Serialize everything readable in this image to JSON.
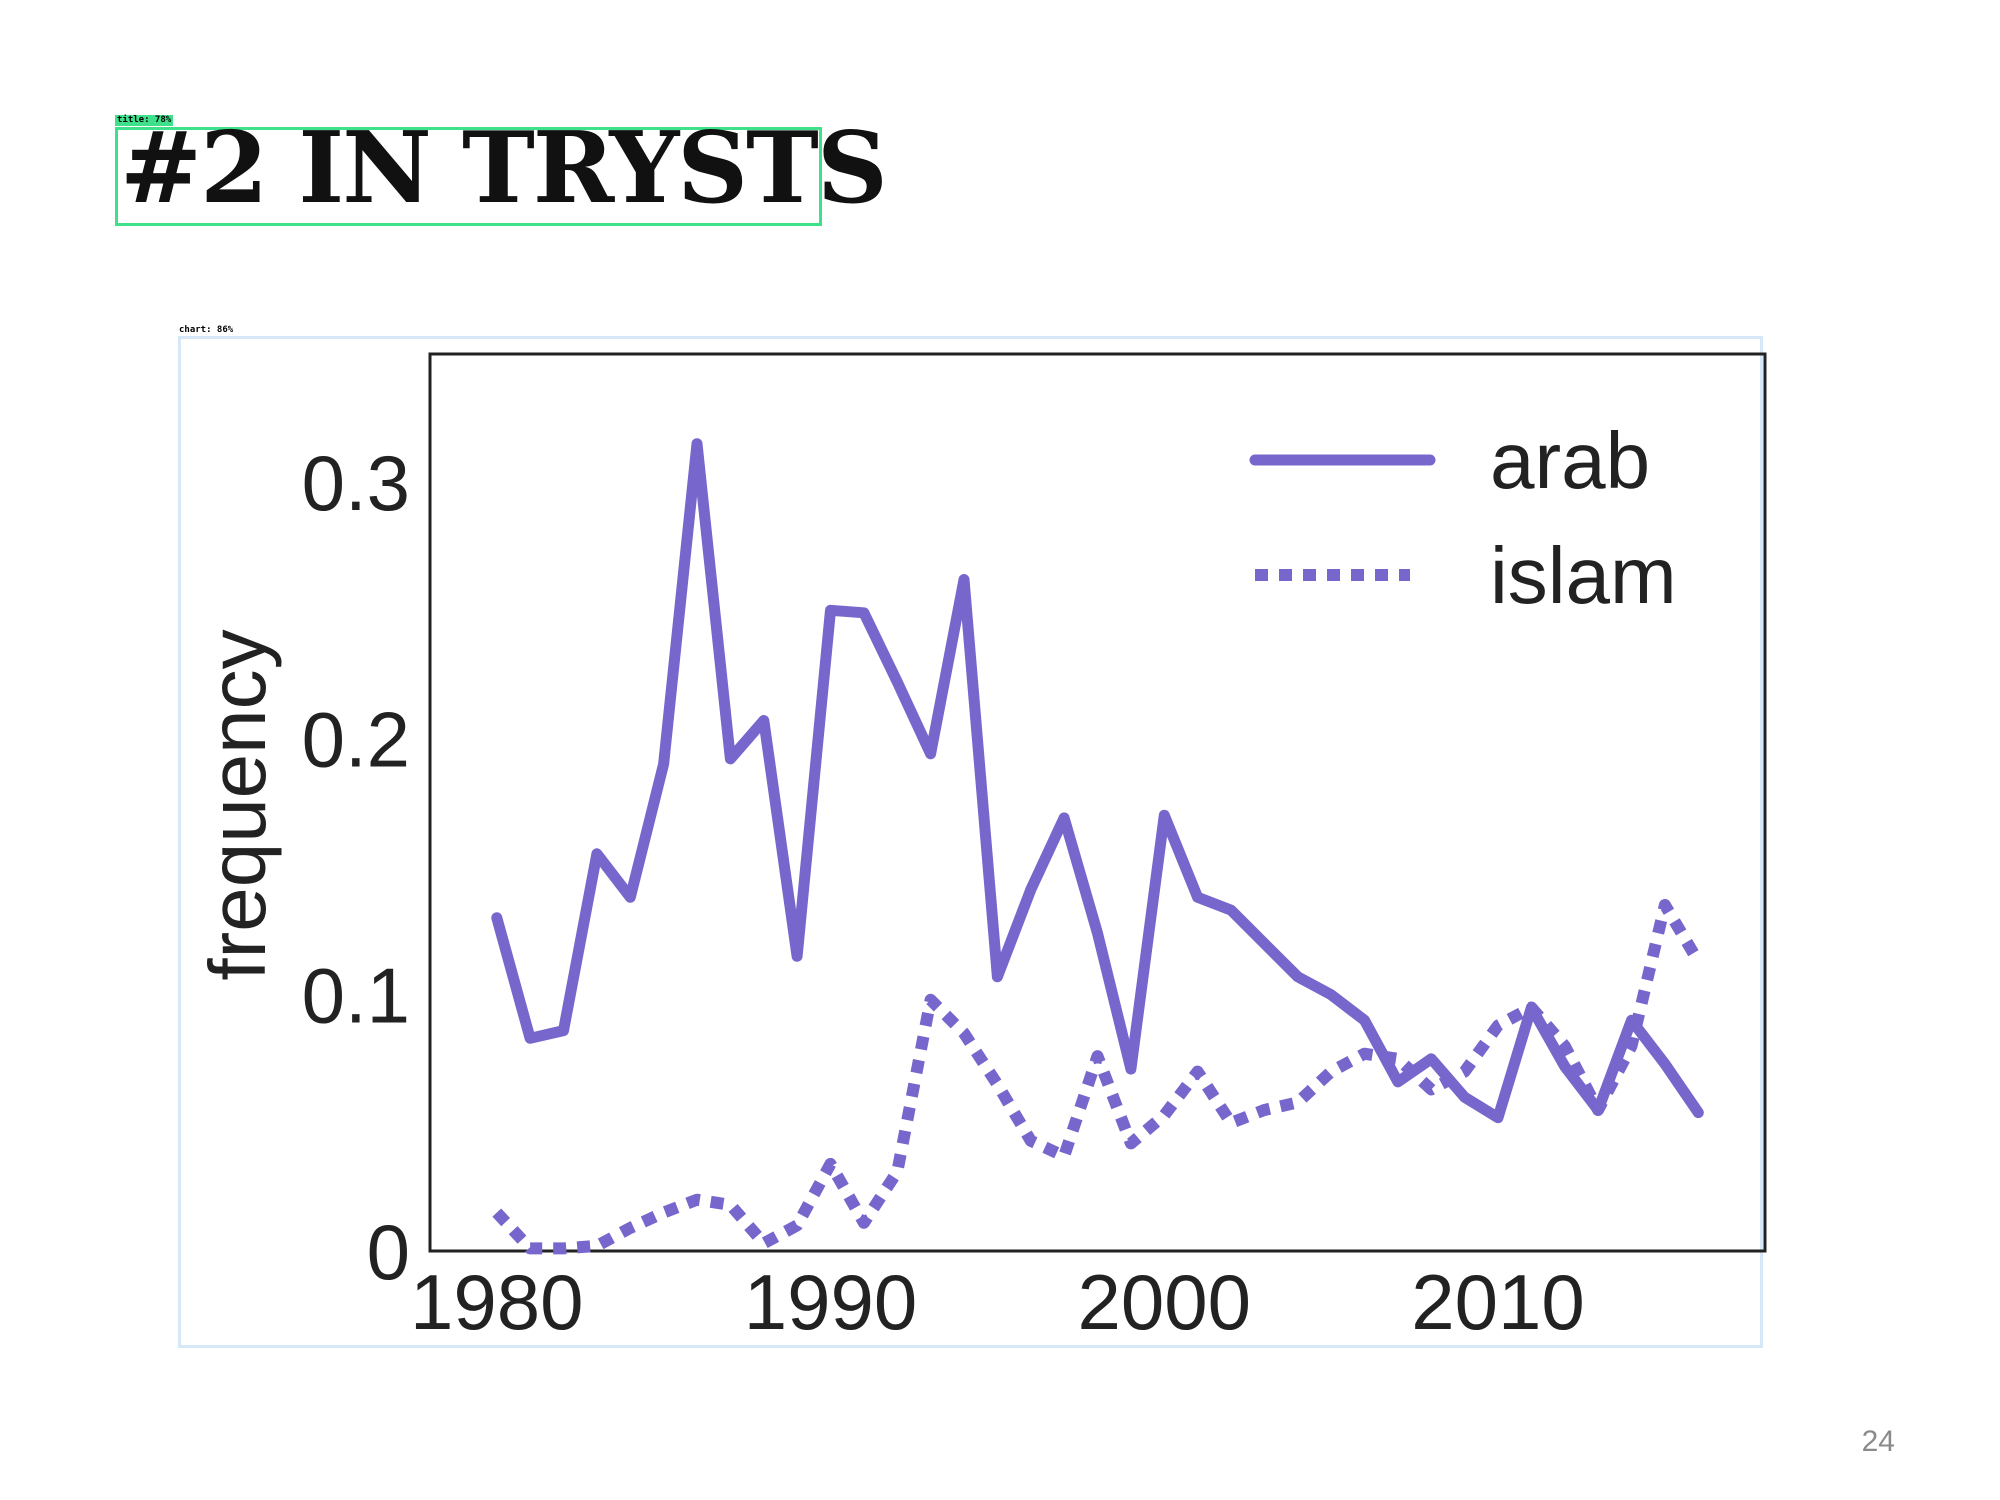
{
  "title_tag": "title: 78%",
  "title": "#2 IN TRYSTS",
  "chart_tag": "chart: 86%",
  "slide_number": "24",
  "colors": {
    "series": "#7766cc",
    "title_box": "#3ee08c",
    "chart_box": "#d6e8f8",
    "axis": "#222222",
    "text": "#222222"
  },
  "chart_data": {
    "type": "line",
    "title": "",
    "xlabel": "",
    "ylabel": "frequency",
    "xlim": [
      1978,
      2018
    ],
    "ylim": [
      0,
      0.35
    ],
    "xticks": [
      1980,
      1990,
      2000,
      2010
    ],
    "xtick_labels": [
      "1980",
      "1990",
      "2000",
      "2010"
    ],
    "yticks": [
      0,
      0.1,
      0.2,
      0.3
    ],
    "ytick_labels": [
      "0",
      "0.1",
      "0.2",
      "0.3"
    ],
    "grid": false,
    "legend_position": "top-right",
    "series": [
      {
        "name": "arab",
        "style": "solid",
        "x": [
          1980,
          1981,
          1982,
          1983,
          1984,
          1985,
          1986,
          1987,
          1988,
          1989,
          1990,
          1991,
          1992,
          1993,
          1994,
          1995,
          1996,
          1997,
          1998,
          1999,
          2000,
          2001,
          2002,
          2003,
          2004,
          2005,
          2006,
          2007,
          2008,
          2009,
          2010,
          2011,
          2012,
          2013,
          2014,
          2015,
          2016
        ],
        "values": [
          0.13,
          0.083,
          0.086,
          0.155,
          0.138,
          0.19,
          0.315,
          0.192,
          0.207,
          0.115,
          0.25,
          0.249,
          0.222,
          0.194,
          0.262,
          0.107,
          0.141,
          0.169,
          0.124,
          0.071,
          0.17,
          0.138,
          0.133,
          0.12,
          0.107,
          0.1,
          0.09,
          0.066,
          0.075,
          0.06,
          0.052,
          0.095,
          0.072,
          0.055,
          0.09,
          0.073,
          0.054
        ]
      },
      {
        "name": "islam",
        "style": "dotted",
        "x": [
          1980,
          1981,
          1982,
          1983,
          1984,
          1985,
          1986,
          1987,
          1988,
          1989,
          1990,
          1991,
          1992,
          1993,
          1994,
          1995,
          1996,
          1997,
          1998,
          1999,
          2000,
          2001,
          2002,
          2003,
          2004,
          2005,
          2006,
          2007,
          2008,
          2009,
          2010,
          2011,
          2012,
          2013,
          2014,
          2015,
          2016
        ],
        "values": [
          0.015,
          0.001,
          0.001,
          0.002,
          0.009,
          0.015,
          0.02,
          0.018,
          0.003,
          0.01,
          0.034,
          0.011,
          0.031,
          0.098,
          0.085,
          0.065,
          0.043,
          0.037,
          0.076,
          0.042,
          0.053,
          0.07,
          0.05,
          0.055,
          0.058,
          0.07,
          0.077,
          0.075,
          0.063,
          0.07,
          0.088,
          0.095,
          0.08,
          0.055,
          0.08,
          0.135,
          0.113
        ]
      }
    ]
  }
}
